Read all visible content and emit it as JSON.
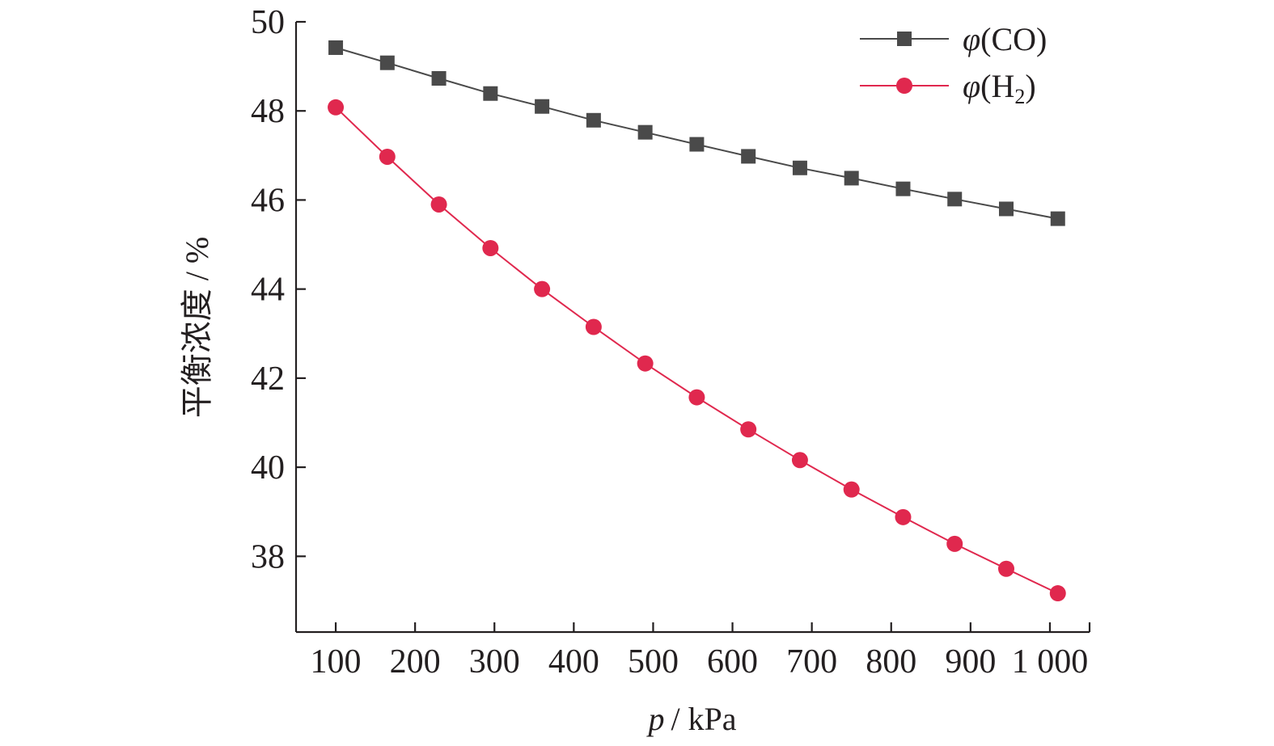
{
  "chart_data": {
    "type": "line",
    "title": "",
    "xlabel_var": "p",
    "xlabel_unit": "/ kPa",
    "ylabel": "平衡浓度 / %",
    "xlim": [
      50,
      1050
    ],
    "ylim": [
      36.3,
      50
    ],
    "x_ticks": [
      100,
      200,
      300,
      400,
      500,
      600,
      700,
      800,
      900,
      1000
    ],
    "x_tick_labels": [
      "100",
      "200",
      "300",
      "400",
      "500",
      "600",
      "700",
      "800",
      "900",
      "1 000"
    ],
    "y_ticks": [
      38,
      40,
      42,
      44,
      46,
      48,
      50
    ],
    "y_tick_labels": [
      "38",
      "40",
      "42",
      "44",
      "46",
      "48",
      "50"
    ],
    "x": [
      100,
      165,
      230,
      295,
      360,
      425,
      490,
      555,
      620,
      685,
      750,
      815,
      880,
      945,
      1010
    ],
    "series": [
      {
        "name": "φ(CO)",
        "name_var": "φ",
        "name_rest": "(CO)",
        "marker": "square",
        "color": "#4a4a4a",
        "values": [
          49.42,
          49.08,
          48.73,
          48.39,
          48.1,
          47.79,
          47.52,
          47.25,
          46.98,
          46.72,
          46.49,
          46.25,
          46.02,
          45.8,
          45.58
        ]
      },
      {
        "name": "φ(H2)",
        "name_var": "φ",
        "name_rest": "(H",
        "name_sub": "2",
        "name_end": ")",
        "marker": "circle",
        "color": "#e0284e",
        "values": [
          48.08,
          46.97,
          45.9,
          44.92,
          44.0,
          43.15,
          42.33,
          41.57,
          40.85,
          40.16,
          39.5,
          38.88,
          38.28,
          37.72,
          37.17
        ]
      }
    ],
    "legend_position": "top-right",
    "grid": false
  }
}
